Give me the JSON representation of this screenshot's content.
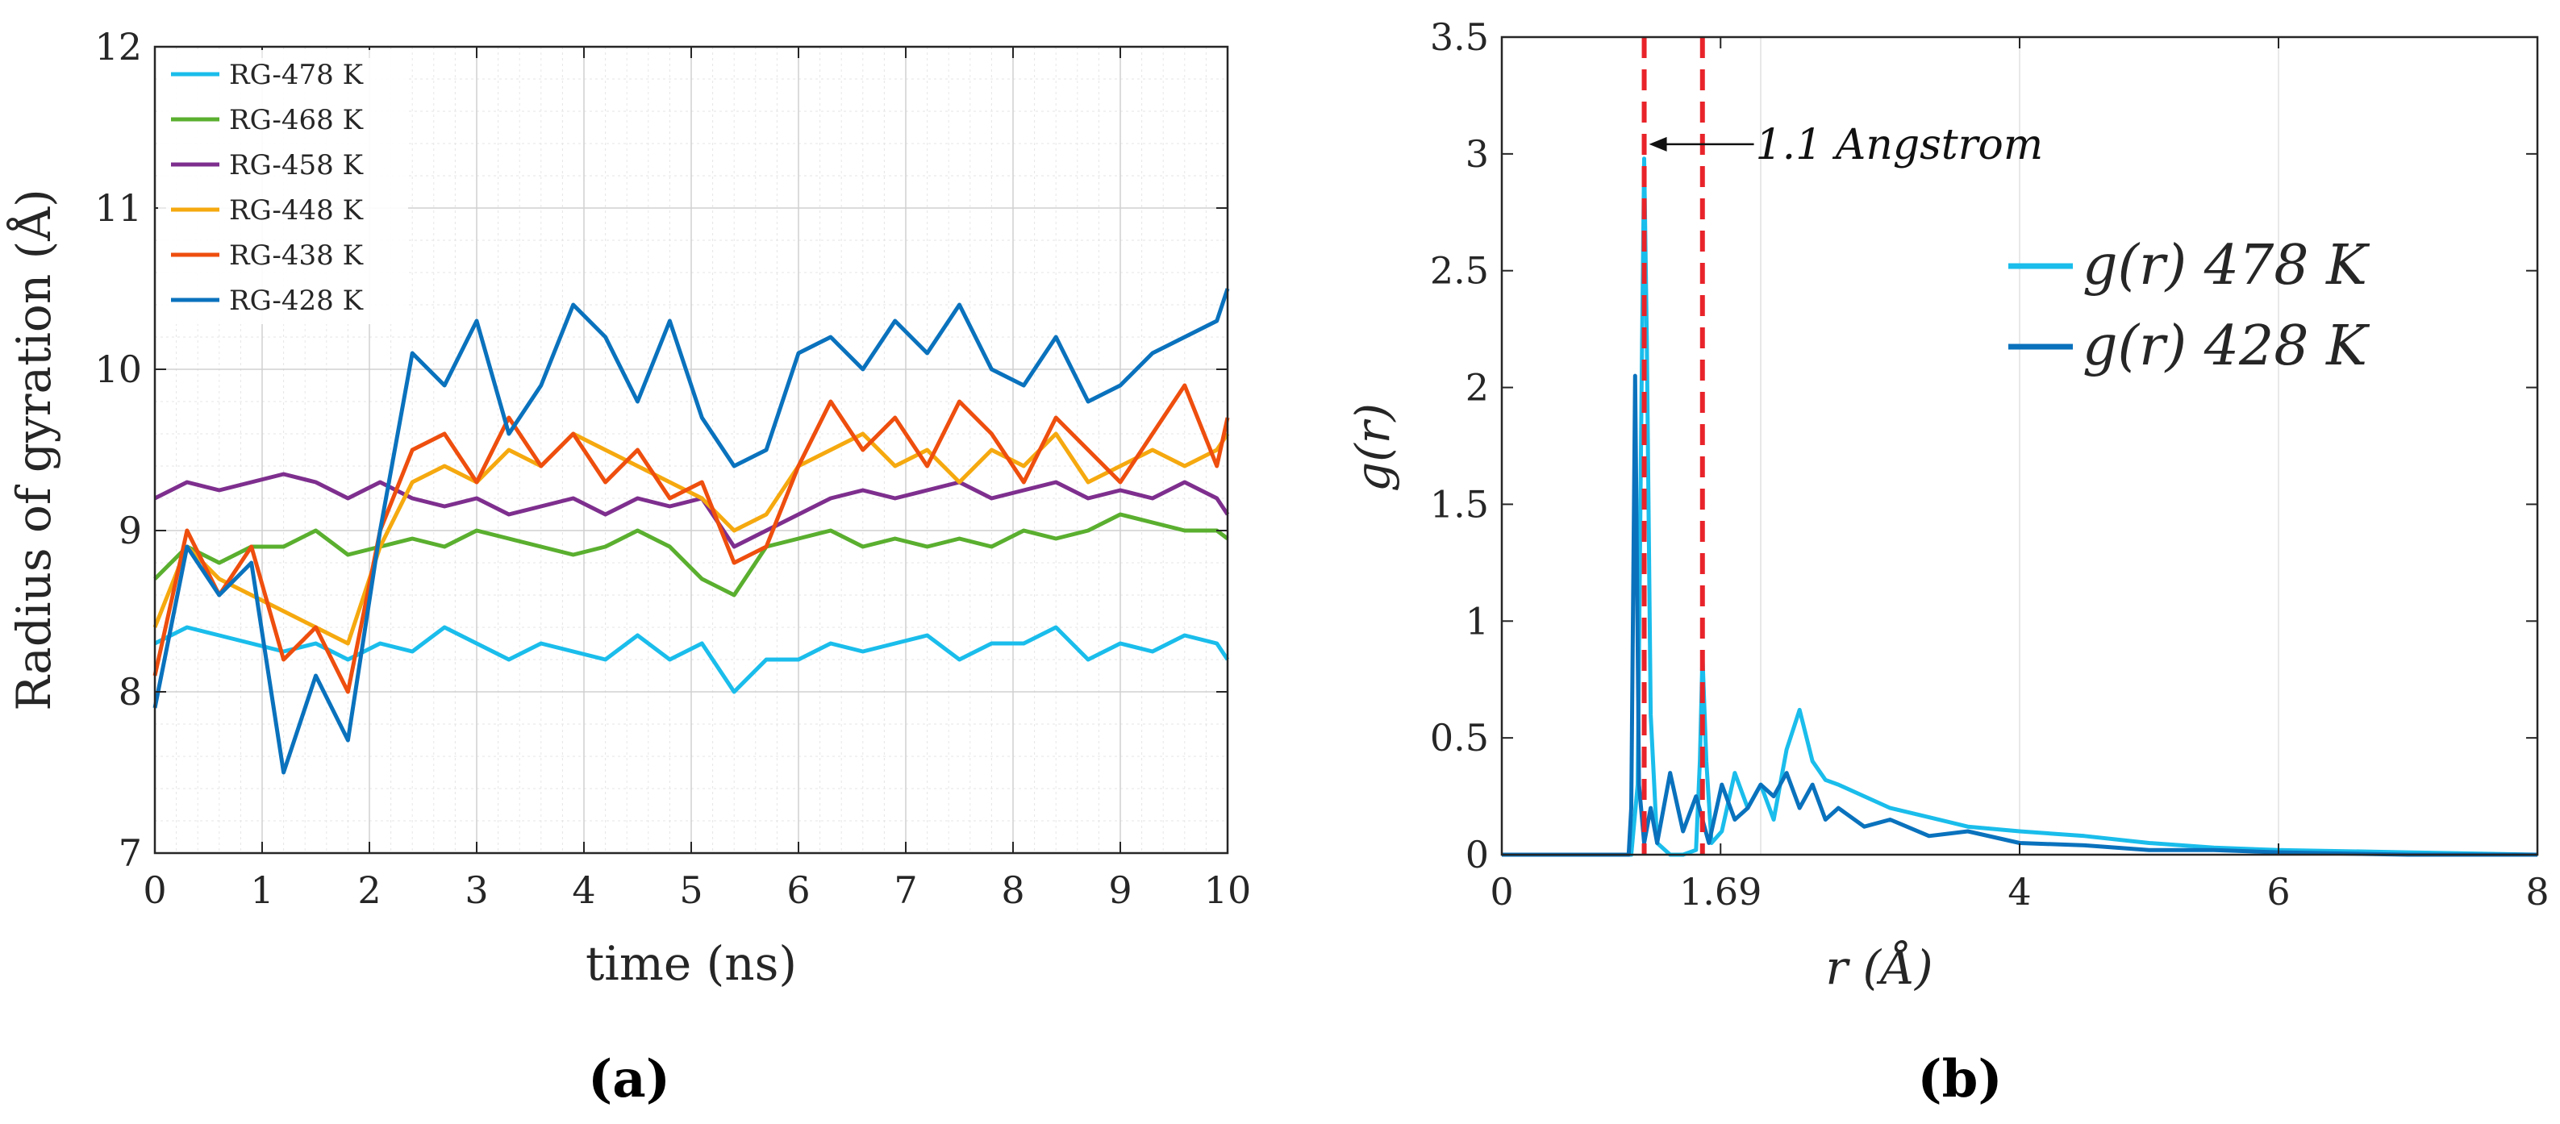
{
  "chart_data": [
    {
      "id": "a",
      "type": "line",
      "panel_label": "(a)",
      "xlabel": "time (ns)",
      "ylabel": "Radius of gyration (Å)",
      "xlim": [
        0,
        10
      ],
      "ylim": [
        7,
        12
      ],
      "xticks": [
        0,
        1,
        2,
        3,
        4,
        5,
        6,
        7,
        8,
        9,
        10
      ],
      "yticks": [
        7,
        8,
        9,
        10,
        11,
        12
      ],
      "grid": true,
      "legend_position": "top-left",
      "series": [
        {
          "name": "RG-478 K",
          "color": "#1ABDEB",
          "x": [
            0,
            0.3,
            0.6,
            0.9,
            1.2,
            1.5,
            1.8,
            2.1,
            2.4,
            2.7,
            3.0,
            3.3,
            3.6,
            3.9,
            4.2,
            4.5,
            4.8,
            5.1,
            5.4,
            5.7,
            6.0,
            6.3,
            6.6,
            6.9,
            7.2,
            7.5,
            7.8,
            8.1,
            8.4,
            8.7,
            9.0,
            9.3,
            9.6,
            9.9,
            10
          ],
          "values": [
            8.3,
            8.4,
            8.35,
            8.3,
            8.25,
            8.3,
            8.2,
            8.3,
            8.25,
            8.4,
            8.3,
            8.2,
            8.3,
            8.25,
            8.2,
            8.35,
            8.2,
            8.3,
            8.0,
            8.2,
            8.2,
            8.3,
            8.25,
            8.3,
            8.35,
            8.2,
            8.3,
            8.3,
            8.4,
            8.2,
            8.3,
            8.25,
            8.35,
            8.3,
            8.2
          ]
        },
        {
          "name": "RG-468 K",
          "color": "#5AAF2F",
          "x": [
            0,
            0.3,
            0.6,
            0.9,
            1.2,
            1.5,
            1.8,
            2.1,
            2.4,
            2.7,
            3.0,
            3.3,
            3.6,
            3.9,
            4.2,
            4.5,
            4.8,
            5.1,
            5.4,
            5.7,
            6.0,
            6.3,
            6.6,
            6.9,
            7.2,
            7.5,
            7.8,
            8.1,
            8.4,
            8.7,
            9.0,
            9.3,
            9.6,
            9.9,
            10
          ],
          "values": [
            8.7,
            8.9,
            8.8,
            8.9,
            8.9,
            9.0,
            8.85,
            8.9,
            8.95,
            8.9,
            9.0,
            8.95,
            8.9,
            8.85,
            8.9,
            9.0,
            8.9,
            8.7,
            8.6,
            8.9,
            8.95,
            9.0,
            8.9,
            8.95,
            8.9,
            8.95,
            8.9,
            9.0,
            8.95,
            9.0,
            9.1,
            9.05,
            9.0,
            9.0,
            8.95
          ]
        },
        {
          "name": "RG-458 K",
          "color": "#7E2F8E",
          "x": [
            0,
            0.3,
            0.6,
            0.9,
            1.2,
            1.5,
            1.8,
            2.1,
            2.4,
            2.7,
            3.0,
            3.3,
            3.6,
            3.9,
            4.2,
            4.5,
            4.8,
            5.1,
            5.4,
            5.7,
            6.0,
            6.3,
            6.6,
            6.9,
            7.2,
            7.5,
            7.8,
            8.1,
            8.4,
            8.7,
            9.0,
            9.3,
            9.6,
            9.9,
            10
          ],
          "values": [
            9.2,
            9.3,
            9.25,
            9.3,
            9.35,
            9.3,
            9.2,
            9.3,
            9.2,
            9.15,
            9.2,
            9.1,
            9.15,
            9.2,
            9.1,
            9.2,
            9.15,
            9.2,
            8.9,
            9.0,
            9.1,
            9.2,
            9.25,
            9.2,
            9.25,
            9.3,
            9.2,
            9.25,
            9.3,
            9.2,
            9.25,
            9.2,
            9.3,
            9.2,
            9.1
          ]
        },
        {
          "name": "RG-448 K",
          "color": "#F5A90F",
          "x": [
            0,
            0.3,
            0.6,
            0.9,
            1.2,
            1.5,
            1.8,
            2.1,
            2.4,
            2.7,
            3.0,
            3.3,
            3.6,
            3.9,
            4.2,
            4.5,
            4.8,
            5.1,
            5.4,
            5.7,
            6.0,
            6.3,
            6.6,
            6.9,
            7.2,
            7.5,
            7.8,
            8.1,
            8.4,
            8.7,
            9.0,
            9.3,
            9.6,
            9.9,
            10
          ],
          "values": [
            8.4,
            8.9,
            8.7,
            8.6,
            8.5,
            8.4,
            8.3,
            8.9,
            9.3,
            9.4,
            9.3,
            9.5,
            9.4,
            9.6,
            9.5,
            9.4,
            9.3,
            9.2,
            9.0,
            9.1,
            9.4,
            9.5,
            9.6,
            9.4,
            9.5,
            9.3,
            9.5,
            9.4,
            9.6,
            9.3,
            9.4,
            9.5,
            9.4,
            9.5,
            9.6
          ]
        },
        {
          "name": "RG-438 K",
          "color": "#EE4E0E",
          "x": [
            0,
            0.3,
            0.6,
            0.9,
            1.2,
            1.5,
            1.8,
            2.1,
            2.4,
            2.7,
            3.0,
            3.3,
            3.6,
            3.9,
            4.2,
            4.5,
            4.8,
            5.1,
            5.4,
            5.7,
            6.0,
            6.3,
            6.6,
            6.9,
            7.2,
            7.5,
            7.8,
            8.1,
            8.4,
            8.7,
            9.0,
            9.3,
            9.6,
            9.9,
            10
          ],
          "values": [
            8.1,
            9.0,
            8.6,
            8.9,
            8.2,
            8.4,
            8.0,
            9.0,
            9.5,
            9.6,
            9.3,
            9.7,
            9.4,
            9.6,
            9.3,
            9.5,
            9.2,
            9.3,
            8.8,
            8.9,
            9.4,
            9.8,
            9.5,
            9.7,
            9.4,
            9.8,
            9.6,
            9.3,
            9.7,
            9.5,
            9.3,
            9.6,
            9.9,
            9.4,
            9.7
          ]
        },
        {
          "name": "RG-428 K",
          "color": "#0A72BD",
          "x": [
            0,
            0.3,
            0.6,
            0.9,
            1.2,
            1.5,
            1.8,
            2.1,
            2.4,
            2.7,
            3.0,
            3.3,
            3.6,
            3.9,
            4.2,
            4.5,
            4.8,
            5.1,
            5.4,
            5.7,
            6.0,
            6.3,
            6.6,
            6.9,
            7.2,
            7.5,
            7.8,
            8.1,
            8.4,
            8.7,
            9.0,
            9.3,
            9.6,
            9.9,
            10
          ],
          "values": [
            7.9,
            8.9,
            8.6,
            8.8,
            7.5,
            8.1,
            7.7,
            9.0,
            10.1,
            9.9,
            10.3,
            9.6,
            9.9,
            10.4,
            10.2,
            9.8,
            10.3,
            9.7,
            9.4,
            9.5,
            10.1,
            10.2,
            10.0,
            10.3,
            10.1,
            10.4,
            10.0,
            9.9,
            10.2,
            9.8,
            9.9,
            10.1,
            10.2,
            10.3,
            10.5
          ]
        }
      ]
    },
    {
      "id": "b",
      "type": "line",
      "panel_label": "(b)",
      "xlabel": "r (Å)",
      "ylabel": "g(r)",
      "xlim": [
        0,
        8
      ],
      "ylim": [
        0,
        3.5
      ],
      "xticks": [
        0,
        1.69,
        4,
        6,
        8
      ],
      "xtick_labels": [
        "0",
        "1.69",
        "4",
        "6",
        "8"
      ],
      "yticks": [
        0,
        0.5,
        1,
        1.5,
        2,
        2.5,
        3,
        3.5
      ],
      "ytick_labels": [
        "0",
        "0.5",
        "1",
        "1.5",
        "2",
        "2.5",
        "3",
        "3.5"
      ],
      "grid": "vertical",
      "legend_position": "upper-right",
      "series": [
        {
          "name": "g(r) 478 K",
          "color": "#1ABDEB",
          "x": [
            0,
            1.0,
            1.05,
            1.08,
            1.1,
            1.12,
            1.15,
            1.2,
            1.3,
            1.4,
            1.5,
            1.53,
            1.55,
            1.58,
            1.62,
            1.7,
            1.8,
            1.9,
            2.0,
            2.1,
            2.2,
            2.3,
            2.4,
            2.5,
            2.6,
            2.8,
            3.0,
            3.3,
            3.6,
            4.0,
            4.5,
            5.0,
            5.5,
            6.0,
            7.0,
            8.0
          ],
          "values": [
            0,
            0,
            0.3,
            2.0,
            2.98,
            2.2,
            0.6,
            0.05,
            0,
            0,
            0.02,
            0.4,
            0.85,
            0.4,
            0.05,
            0.1,
            0.35,
            0.2,
            0.3,
            0.15,
            0.45,
            0.62,
            0.4,
            0.32,
            0.3,
            0.25,
            0.2,
            0.16,
            0.12,
            0.1,
            0.08,
            0.05,
            0.03,
            0.02,
            0.01,
            0
          ]
        },
        {
          "name": "g(r) 428 K",
          "color": "#0A72BD",
          "x": [
            0,
            0.98,
            1.0,
            1.03,
            1.06,
            1.1,
            1.15,
            1.2,
            1.3,
            1.4,
            1.5,
            1.6,
            1.7,
            1.8,
            1.9,
            2.0,
            2.1,
            2.2,
            2.3,
            2.4,
            2.5,
            2.6,
            2.8,
            3.0,
            3.3,
            3.6,
            4.0,
            4.5,
            5.0,
            5.5,
            6.0,
            7.0,
            8.0
          ],
          "values": [
            0,
            0,
            0.2,
            2.05,
            0.3,
            0.05,
            0.2,
            0.05,
            0.35,
            0.1,
            0.25,
            0.05,
            0.3,
            0.15,
            0.2,
            0.3,
            0.25,
            0.35,
            0.2,
            0.3,
            0.15,
            0.2,
            0.12,
            0.15,
            0.08,
            0.1,
            0.05,
            0.04,
            0.02,
            0.02,
            0.01,
            0,
            0
          ]
        }
      ],
      "vlines": [
        1.1,
        1.55
      ],
      "vline_color": "#E8242A",
      "annotation": "1.1 Angstrom",
      "annotation_x": 1.1,
      "annotation_y": 3.0
    }
  ]
}
